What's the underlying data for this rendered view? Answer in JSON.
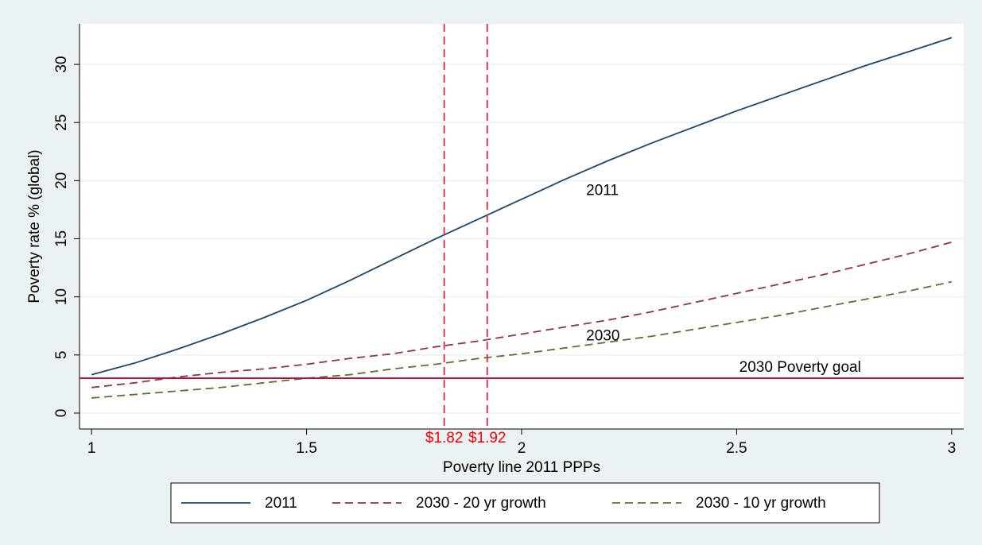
{
  "chart_data": {
    "type": "line",
    "ylabel": "Poverty rate % (global)",
    "xlabel": "Poverty line 2011 PPPs",
    "x": [
      1,
      1.1,
      1.2,
      1.3,
      1.4,
      1.5,
      1.6,
      1.7,
      1.8,
      1.9,
      2,
      2.1,
      2.2,
      2.3,
      2.4,
      2.5,
      2.6,
      2.7,
      2.8,
      2.9,
      3
    ],
    "series": [
      {
        "name": "2011",
        "color": "#1a476f",
        "dash": "solid",
        "values": [
          3.3,
          4.3,
          5.5,
          6.8,
          8.2,
          9.7,
          11.4,
          13.2,
          15.0,
          16.7,
          18.4,
          20.1,
          21.7,
          23.2,
          24.6,
          26.0,
          27.3,
          28.6,
          29.9,
          31.1,
          32.3
        ]
      },
      {
        "name": "2030 - 20 yr growth",
        "color": "#90353b",
        "dash": "dashed",
        "values": [
          2.2,
          2.6,
          3.1,
          3.5,
          3.8,
          4.2,
          4.7,
          5.1,
          5.7,
          6.2,
          6.8,
          7.4,
          8.0,
          8.7,
          9.5,
          10.3,
          11.1,
          11.9,
          12.8,
          13.7,
          14.7
        ]
      },
      {
        "name": "2030 - 10 yr growth",
        "color": "#55752f",
        "dash": "dashed",
        "values": [
          1.3,
          1.6,
          1.9,
          2.2,
          2.6,
          3.0,
          3.3,
          3.8,
          4.2,
          4.7,
          5.1,
          5.6,
          6.1,
          6.6,
          7.2,
          7.8,
          8.4,
          9.1,
          9.8,
          10.5,
          11.3
        ]
      }
    ],
    "xlim": [
      0.972,
      3.028
    ],
    "ylim": [
      -1.37,
      33.49
    ],
    "xticks": [
      1,
      1.5,
      2,
      2.5,
      3
    ],
    "yticks": [
      0,
      5,
      10,
      15,
      20,
      25,
      30
    ],
    "grid": true,
    "reference_lines": [
      {
        "axis": "x",
        "value": 1.82,
        "label": "$1.82",
        "color": "#d7263d",
        "label_color": "#ff0000",
        "dash": "dashed"
      },
      {
        "axis": "x",
        "value": 1.92,
        "label": "$1.92",
        "color": "#d7263d",
        "label_color": "#ff0000",
        "dash": "dashed"
      },
      {
        "axis": "y",
        "value": 3,
        "color": "#c10534",
        "dash": "solid"
      }
    ],
    "annotations": [
      {
        "text": "2011",
        "x": 2.15,
        "y": 19.1
      },
      {
        "text": "2030",
        "x": 2.15,
        "y": 6.6
      },
      {
        "text": "2030 Poverty goal",
        "x": 2.506,
        "y": 3.9
      }
    ],
    "legend": "bottom"
  }
}
